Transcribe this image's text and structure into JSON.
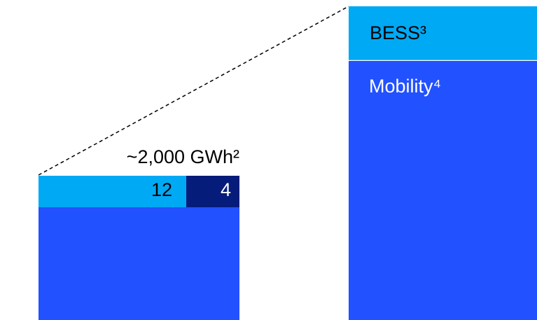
{
  "left_block": {
    "total_label": "~2,000 GWh²",
    "segment_labels": [
      "12",
      "4"
    ]
  },
  "right_block": {
    "segment_labels": [
      "BESS³",
      "Mobility⁴"
    ]
  }
}
